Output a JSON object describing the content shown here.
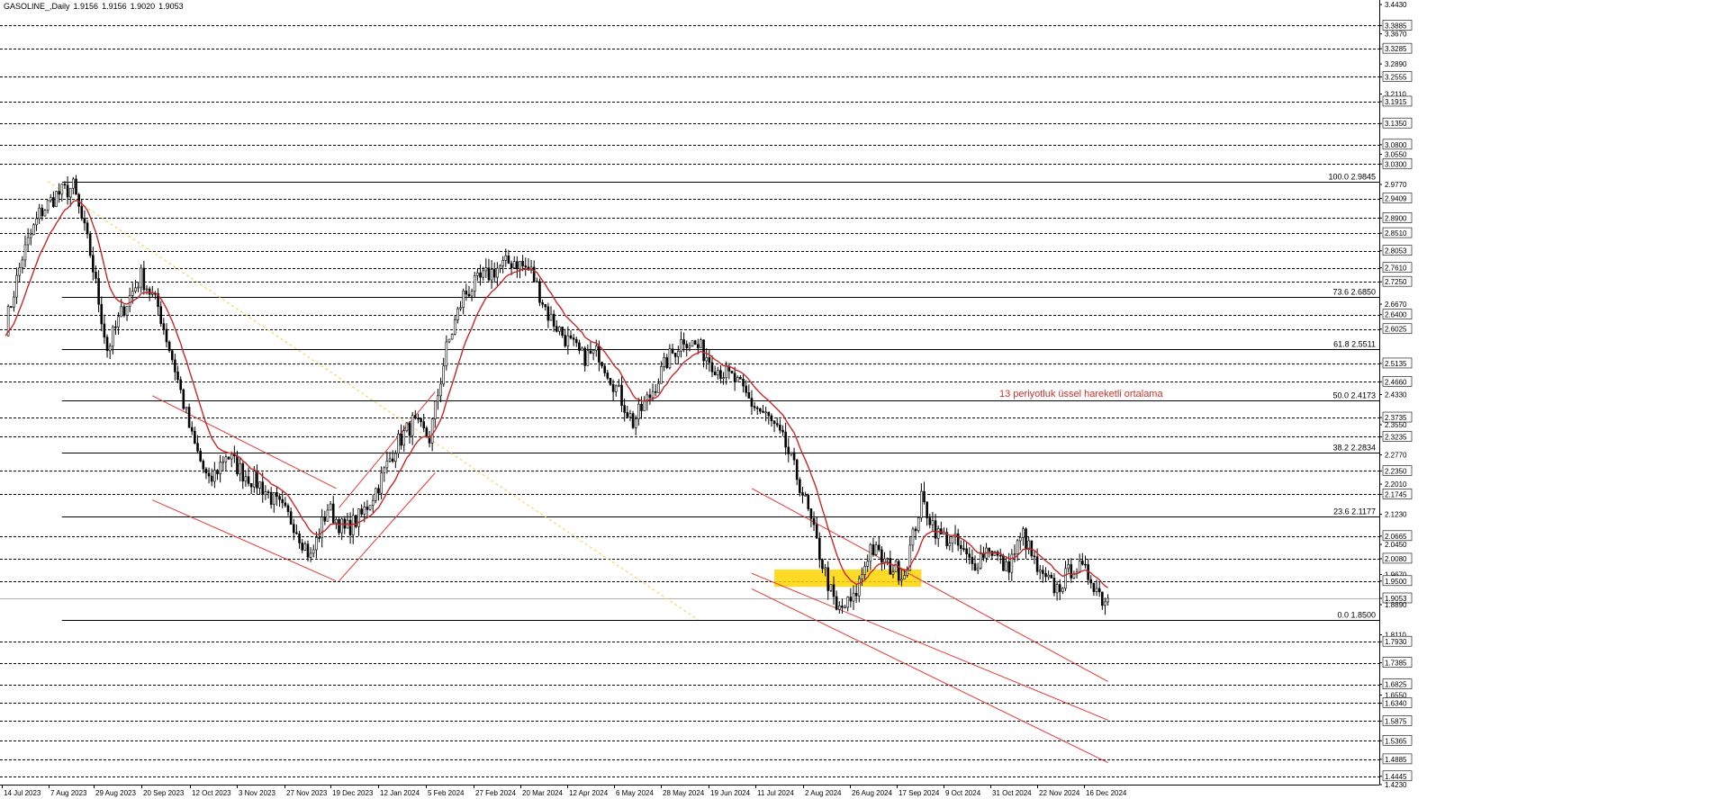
{
  "header": {
    "symbol_timeframe": "GASOLINE_,Daily",
    "ohlc": [
      "1.9156",
      "1.9156",
      "1.9020",
      "1.9053"
    ]
  },
  "annotation": {
    "text": "13 periyotluk üssel hareketli ortalama",
    "color": "#d32f2f"
  },
  "colors": {
    "grid": "#000000",
    "candle": "#000000",
    "ema": "#c62828",
    "channel": "#e53935",
    "fib_diagonal": "#f2d04a",
    "highlight_zone": "#ffd400",
    "axis_label_box": "#ffffff"
  },
  "chart_data": {
    "type": "candlestick",
    "title": "",
    "ylim": [
      1.423,
      3.443
    ],
    "x_tick_labels": [
      "14 Jul 2023",
      "7 Aug 2023",
      "29 Aug 2023",
      "20 Sep 2023",
      "12 Oct 2023",
      "3 Nov 2023",
      "27 Nov 2023",
      "19 Dec 2023",
      "12 Jan 2024",
      "5 Feb 2024",
      "27 Feb 2024",
      "20 Mar 2024",
      "12 Apr 2024",
      "6 May 2024",
      "28 May 2024",
      "19 Jun 2024",
      "11 Jul 2024",
      "2 Aug 2024",
      "26 Aug 2024",
      "17 Sep 2024",
      "9 Oct 2024",
      "31 Oct 2024",
      "22 Nov 2024",
      "16 Dec 2024"
    ],
    "y_tick_labels": [
      3.443,
      3.3885,
      3.367,
      3.3285,
      3.289,
      3.2555,
      3.211,
      3.1915,
      3.135,
      3.08,
      3.055,
      3.03,
      2.977,
      2.9409,
      2.89,
      2.851,
      2.8053,
      2.761,
      2.725,
      2.667,
      2.64,
      2.6025,
      2.5135,
      2.466,
      2.433,
      2.3735,
      2.355,
      2.3235,
      2.277,
      2.235,
      2.201,
      2.1745,
      2.123,
      2.0665,
      2.045,
      2.008,
      1.967,
      1.95,
      1.9053,
      1.889,
      1.85,
      1.811,
      1.793,
      1.7385,
      1.6825,
      1.655,
      1.634,
      1.5875,
      1.5365,
      1.4885,
      1.4445,
      1.423
    ],
    "highlighted_y_labels": [
      "3.3885",
      "3.3285",
      "3.2555",
      "3.1915",
      "3.1350",
      "3.0800",
      "3.0300",
      "2.9409",
      "2.8900",
      "2.8510",
      "2.8053",
      "2.7610",
      "2.7250",
      "2.6400",
      "2.6025",
      "2.5135",
      "2.4660",
      "2.3735",
      "2.3235",
      "2.2350",
      "2.1745",
      "2.0665",
      "2.0080",
      "1.9500",
      "1.9053",
      "1.7930",
      "1.7385",
      "1.6825",
      "1.6340",
      "1.5875",
      "1.5365",
      "1.4885",
      "1.4445"
    ],
    "price_axis_labels": [
      "3.4430",
      "3.3885",
      "3.3670",
      "3.3285",
      "3.2890",
      "3.2555",
      "3.2110",
      "3.1915",
      "3.1350",
      "3.0800",
      "3.0550",
      "3.0300",
      "2.9770",
      "2.9409",
      "2.8900",
      "2.8510",
      "2.8053",
      "2.7610",
      "2.7250",
      "2.6670",
      "2.6400",
      "2.6025",
      "2.5135",
      "2.4660",
      "2.4330",
      "2.3735",
      "2.3550",
      "2.3235",
      "2.2770",
      "2.2350",
      "2.2010",
      "2.1745",
      "2.1230",
      "2.0665",
      "2.0450",
      "2.0080",
      "1.9670",
      "1.9500",
      "1.9053",
      "1.8890",
      "1.8110",
      "1.7930",
      "1.7385",
      "1.6825",
      "1.6550",
      "1.6340",
      "1.5875",
      "1.5365",
      "1.4885",
      "1.4445",
      "1.4230"
    ],
    "current_price": 1.9053,
    "fib_levels": [
      {
        "label": "100.0 2.9845",
        "value": 2.9845
      },
      {
        "label": "73.6 2.6850",
        "value": 2.685
      },
      {
        "label": "61.8 2.5511",
        "value": 2.5511
      },
      {
        "label": "50.0 2.4173",
        "value": 2.4173
      },
      {
        "label": "38.2 2.2834",
        "value": 2.2834
      },
      {
        "label": "23.6 2.1177",
        "value": 2.1177
      },
      {
        "label": "0.0 1.8500",
        "value": 1.85
      }
    ],
    "series_close_keypoints": [
      [
        0,
        2.61
      ],
      [
        6,
        2.79
      ],
      [
        12,
        2.9
      ],
      [
        18,
        2.95
      ],
      [
        24,
        2.97
      ],
      [
        30,
        2.8
      ],
      [
        36,
        2.55
      ],
      [
        42,
        2.66
      ],
      [
        48,
        2.74
      ],
      [
        54,
        2.66
      ],
      [
        60,
        2.5
      ],
      [
        66,
        2.32
      ],
      [
        72,
        2.2
      ],
      [
        78,
        2.28
      ],
      [
        84,
        2.23
      ],
      [
        90,
        2.2
      ],
      [
        96,
        2.15
      ],
      [
        102,
        2.1
      ],
      [
        108,
        2.01
      ],
      [
        114,
        2.14
      ],
      [
        120,
        2.08
      ],
      [
        126,
        2.12
      ],
      [
        132,
        2.2
      ],
      [
        138,
        2.3
      ],
      [
        144,
        2.36
      ],
      [
        150,
        2.32
      ],
      [
        156,
        2.55
      ],
      [
        162,
        2.69
      ],
      [
        168,
        2.73
      ],
      [
        174,
        2.76
      ],
      [
        180,
        2.78
      ],
      [
        186,
        2.75
      ],
      [
        192,
        2.64
      ],
      [
        198,
        2.58
      ],
      [
        204,
        2.53
      ],
      [
        210,
        2.54
      ],
      [
        216,
        2.45
      ],
      [
        222,
        2.36
      ],
      [
        228,
        2.43
      ],
      [
        234,
        2.52
      ],
      [
        240,
        2.58
      ],
      [
        246,
        2.55
      ],
      [
        252,
        2.5
      ],
      [
        258,
        2.47
      ],
      [
        264,
        2.41
      ],
      [
        270,
        2.37
      ],
      [
        276,
        2.3
      ],
      [
        282,
        2.18
      ],
      [
        288,
        2.02
      ],
      [
        294,
        1.87
      ],
      [
        300,
        1.9
      ],
      [
        306,
        2.04
      ],
      [
        312,
        1.99
      ],
      [
        318,
        1.97
      ],
      [
        324,
        2.16
      ],
      [
        330,
        2.07
      ],
      [
        336,
        2.05
      ],
      [
        342,
        1.99
      ],
      [
        348,
        2.04
      ],
      [
        354,
        1.98
      ],
      [
        360,
        2.07
      ],
      [
        366,
        1.96
      ],
      [
        372,
        1.93
      ],
      [
        378,
        1.99
      ],
      [
        384,
        1.96
      ],
      [
        388,
        1.905
      ]
    ],
    "ema_period": 13,
    "channels": [
      {
        "name": "downtrend channel 1",
        "upper": [
          [
            52,
            2.43
          ],
          [
            117,
            2.19
          ]
        ],
        "lower": [
          [
            52,
            2.16
          ],
          [
            117,
            1.95
          ]
        ]
      },
      {
        "name": "uptrend channel",
        "upper": [
          [
            118,
            2.14
          ],
          [
            152,
            2.44
          ]
        ],
        "lower": [
          [
            118,
            1.95
          ],
          [
            152,
            2.23
          ]
        ]
      },
      {
        "name": "descending channel",
        "upper": [
          [
            264,
            2.19
          ],
          [
            390,
            1.69
          ]
        ],
        "middle": [
          [
            264,
            1.97
          ],
          [
            390,
            1.59
          ]
        ],
        "lower": [
          [
            264,
            1.93
          ],
          [
            390,
            1.48
          ]
        ]
      }
    ],
    "fib_diagonal": [
      [
        15,
        2.985
      ],
      [
        245,
        1.85
      ]
    ],
    "highlight_zone": {
      "x_range": [
        272,
        324
      ],
      "y_range": [
        1.935,
        1.98
      ]
    }
  }
}
